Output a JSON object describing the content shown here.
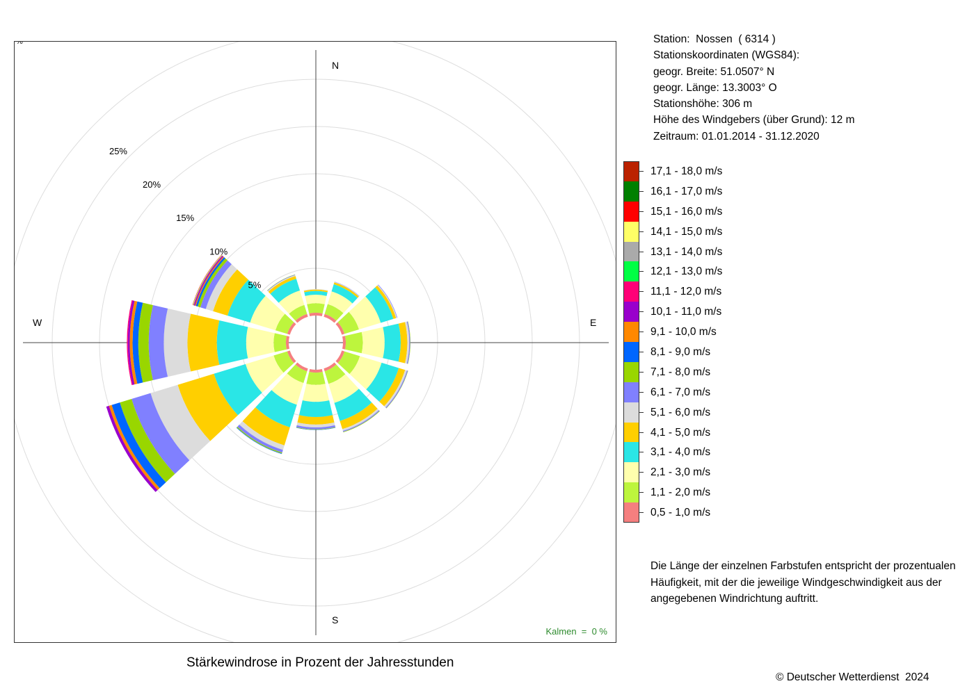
{
  "chart_data": {
    "type": "wind-rose",
    "title": "Stärkewindrose in Prozent der Jahresstunden",
    "radial_unit_label": "%",
    "radial_ticks": [
      5,
      10,
      15,
      20,
      25
    ],
    "radial_tick_labels": [
      "5%",
      "10%",
      "15%",
      "20%",
      "25%"
    ],
    "radial_max": 30,
    "direction_labels": {
      "north": "N",
      "east": "E",
      "south": "S",
      "west": "W"
    },
    "calm_label": "Kalmen  =  0 %",
    "speed_classes": [
      {
        "label": "0,5 - 1,0 m/s",
        "color": "#f57f7f"
      },
      {
        "label": "1,1 - 2,0 m/s",
        "color": "#bdf53d"
      },
      {
        "label": "2,1 - 3,0 m/s",
        "color": "#ffffad"
      },
      {
        "label": "3,1 - 4,0 m/s",
        "color": "#2ae6e6"
      },
      {
        "label": "4,1 - 5,0 m/s",
        "color": "#ffcf00"
      },
      {
        "label": "5,1 - 6,0 m/s",
        "color": "#dcdcdc"
      },
      {
        "label": "6,1 - 7,0 m/s",
        "color": "#8080ff"
      },
      {
        "label": "7,1 - 8,0 m/s",
        "color": "#99d600"
      },
      {
        "label": "8,1 - 9,0 m/s",
        "color": "#0066ff"
      },
      {
        "label": "9,1 - 10,0 m/s",
        "color": "#ff8800"
      },
      {
        "label": "10,1 - 11,0 m/s",
        "color": "#9900cc"
      },
      {
        "label": "11,1 - 12,0 m/s",
        "color": "#ff0077"
      },
      {
        "label": "12,1 - 13,0 m/s",
        "color": "#00ff44"
      },
      {
        "label": "13,1 - 14,0 m/s",
        "color": "#aaaaaa"
      },
      {
        "label": "14,1 - 15,0 m/s",
        "color": "#ffff66"
      },
      {
        "label": "15,1 - 16,0 m/s",
        "color": "#ff0000"
      },
      {
        "label": "16,1 - 17,0 m/s",
        "color": "#008000"
      },
      {
        "label": "17,1 - 18,0 m/s",
        "color": "#bb2200"
      }
    ],
    "sectors": [
      {
        "direction_deg": 0,
        "values": [
          0.3,
          1.0,
          0.9,
          0.4,
          0.15,
          0.05
        ]
      },
      {
        "direction_deg": 30,
        "values": [
          0.3,
          1.1,
          1.4,
          0.8,
          0.2,
          0.05,
          0.03
        ]
      },
      {
        "direction_deg": 60,
        "values": [
          0.3,
          1.6,
          2.4,
          1.4,
          0.3,
          0.1,
          0.05
        ]
      },
      {
        "direction_deg": 90,
        "values": [
          0.3,
          1.8,
          2.3,
          1.7,
          0.7,
          0.2,
          0.1,
          0.03
        ]
      },
      {
        "direction_deg": 120,
        "values": [
          0.3,
          1.7,
          2.4,
          1.9,
          0.7,
          0.2,
          0.1,
          0.03
        ]
      },
      {
        "direction_deg": 150,
        "values": [
          0.3,
          1.4,
          2.1,
          2.0,
          0.9,
          0.2,
          0.1,
          0.05
        ]
      },
      {
        "direction_deg": 180,
        "values": [
          0.3,
          1.3,
          1.8,
          1.6,
          0.8,
          0.3,
          0.2,
          0.05,
          0.03
        ]
      },
      {
        "direction_deg": 210,
        "values": [
          0.3,
          1.3,
          2.4,
          2.5,
          2.0,
          0.5,
          0.3,
          0.1,
          0.05
        ]
      },
      {
        "direction_deg": 240,
        "values": [
          0.3,
          1.5,
          3.1,
          3.5,
          4.0,
          3.0,
          2.1,
          1.3,
          0.9,
          0.3,
          0.3
        ]
      },
      {
        "direction_deg": 270,
        "values": [
          0.3,
          1.3,
          2.9,
          3.1,
          3.1,
          2.5,
          1.6,
          1.1,
          0.6,
          0.3,
          0.2,
          0.1
        ]
      },
      {
        "direction_deg": 300,
        "values": [
          0.3,
          1.3,
          2.8,
          2.5,
          1.6,
          0.8,
          0.6,
          0.3,
          0.2,
          0.1,
          0.1,
          0.05,
          0.03,
          0.03,
          0.03,
          0.03
        ]
      },
      {
        "direction_deg": 330,
        "values": [
          0.3,
          1.0,
          1.6,
          1.3,
          0.3,
          0.1,
          0.05,
          0.03
        ]
      }
    ]
  },
  "station_info": [
    "Station:  Nossen  ( 6314 )",
    "Stationskoordinaten (WGS84):",
    "geogr. Breite: 51.0507° N",
    "geogr. Länge: 13.3003° O",
    "Stationshöhe: 306 m",
    "Höhe des Windgebers (über Grund): 12 m",
    "Zeitraum: 01.01.2014 - 31.12.2020"
  ],
  "note": "Die Länge der einzelnen Farbstufen entspricht der prozentualen Häufigkeit, mit der die jeweilige Windgeschwindigkeit aus der angegebenen Windrichtung auftritt.",
  "copyright": "© Deutscher Wetterdienst  2024"
}
